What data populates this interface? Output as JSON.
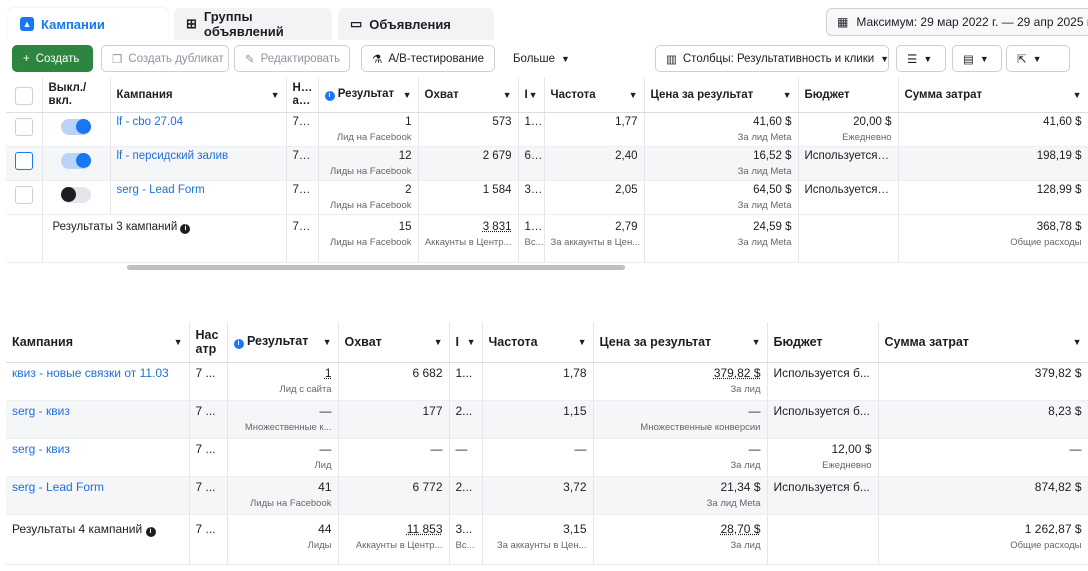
{
  "tabs": [
    {
      "label": "Кампании",
      "icon": "campaign-icon"
    },
    {
      "label": "Группы объявлений",
      "icon": "grid-icon"
    },
    {
      "label": "Объявления",
      "icon": "ad-icon"
    }
  ],
  "date_range": "Максимум: 29 мар 2022 г. — 29 апр 2025 г.",
  "toolbar": {
    "create": "Создать",
    "duplicate": "Создать дубликат",
    "edit": "Редактировать",
    "ab_test": "A/B-тестирование",
    "more": "Больше",
    "columns": "Столбцы: Результативность и клики"
  },
  "table1": {
    "headers": {
      "onoff": "Выкл./ вкл.",
      "campaign": "Кампания",
      "delivery": "Нас атр",
      "result": "Результат",
      "reach": "Охват",
      "impressions": "I",
      "frequency": "Частота",
      "cost_per_result": "Цена за результат",
      "budget": "Бюджет",
      "spent": "Сумма затрат"
    },
    "rows": [
      {
        "name": "lf - cbo 27.04",
        "toggle": "on",
        "delivery": "7 ...",
        "result": "1",
        "result_sub": "Лид на Facebook",
        "reach": "573",
        "impr": "1 ...",
        "freq": "1,77",
        "cpr": "41,60 $",
        "cpr_sub": "За лид Meta",
        "budget": "20,00 $",
        "budget_sub": "Ежедневно",
        "spent": "41,60 $"
      },
      {
        "name": "lf - персидский залив",
        "toggle": "on",
        "delivery": "7 ...",
        "result": "12",
        "result_sub": "Лиды на Facebook",
        "reach": "2 679",
        "impr": "6...",
        "freq": "2,40",
        "cpr": "16,52 $",
        "cpr_sub": "За лид Meta",
        "budget": "Используется б...",
        "budget_sub": "",
        "spent": "198,19 $"
      },
      {
        "name": "serg - Lead Form",
        "toggle": "off",
        "delivery": "7 ...",
        "result": "2",
        "result_sub": "Лиды на Facebook",
        "reach": "1 584",
        "impr": "3...",
        "freq": "2,05",
        "cpr": "64,50 $",
        "cpr_sub": "За лид Meta",
        "budget": "Используется б...",
        "budget_sub": "",
        "spent": "128,99 $"
      }
    ],
    "total": {
      "label": "Результаты 3 кампаний",
      "delivery": "7 ...",
      "result": "15",
      "result_sub": "Лиды на Facebook",
      "reach": "3 831",
      "reach_sub": "Аккаунты в Центр...",
      "impr": "1...",
      "impr_sub": "Вс...",
      "freq": "2,79",
      "freq_sub": "За аккаунты в Цен...",
      "cpr": "24,59 $",
      "cpr_sub": "За лид Meta",
      "spent": "368,78 $",
      "spent_sub": "Общие расходы"
    }
  },
  "table2": {
    "headers": {
      "campaign": "Кампания",
      "delivery": "Нас атр",
      "result": "Результат",
      "reach": "Охват",
      "impressions": "I",
      "frequency": "Частота",
      "cost_per_result": "Цена за результат",
      "budget": "Бюджет",
      "spent": "Сумма затрат"
    },
    "rows": [
      {
        "name": "квиз - новые связки от 11.03",
        "delivery": "7 ...",
        "result": "1",
        "result_sub": "Лид с сайта",
        "reach": "6 682",
        "impr": "1...",
        "freq": "1,78",
        "cpr": "379,82 $",
        "cpr_sub": "За лид",
        "budget": "Используется б...",
        "budget_sub": "",
        "spent": "379,82 $"
      },
      {
        "name": "serg - квиз",
        "delivery": "7 ...",
        "result": "—",
        "result_sub": "Множественные к...",
        "reach": "177",
        "impr": "2...",
        "freq": "1,15",
        "cpr": "—",
        "cpr_sub": "Множественные конверсии",
        "budget": "Используется б...",
        "budget_sub": "",
        "spent": "8,23 $"
      },
      {
        "name": "serg - квиз",
        "delivery": "7 ...",
        "result": "—",
        "result_sub": "Лид",
        "reach": "—",
        "impr": "—",
        "freq": "—",
        "cpr": "—",
        "cpr_sub": "За лид",
        "budget": "12,00 $",
        "budget_sub": "Ежедневно",
        "spent": "—"
      },
      {
        "name": "serg - Lead Form",
        "delivery": "7 ...",
        "result": "41",
        "result_sub": "Лиды на Facebook",
        "reach": "6 772",
        "impr": "2...",
        "freq": "3,72",
        "cpr": "21,34 $",
        "cpr_sub": "За лид Meta",
        "budget": "Используется б...",
        "budget_sub": "",
        "spent": "874,82 $"
      }
    ],
    "total": {
      "label": "Результаты 4 кампаний",
      "delivery": "7 ...",
      "result": "44",
      "result_sub": "Лиды",
      "reach": "11 853",
      "reach_sub": "Аккаунты в Центр...",
      "impr": "3...",
      "impr_sub": "Вс...",
      "freq": "3,15",
      "freq_sub": "За аккаунты в Цен...",
      "cpr": "28,70 $",
      "cpr_sub": "За лид",
      "spent": "1 262,87 $",
      "spent_sub": "Общие расходы"
    }
  }
}
